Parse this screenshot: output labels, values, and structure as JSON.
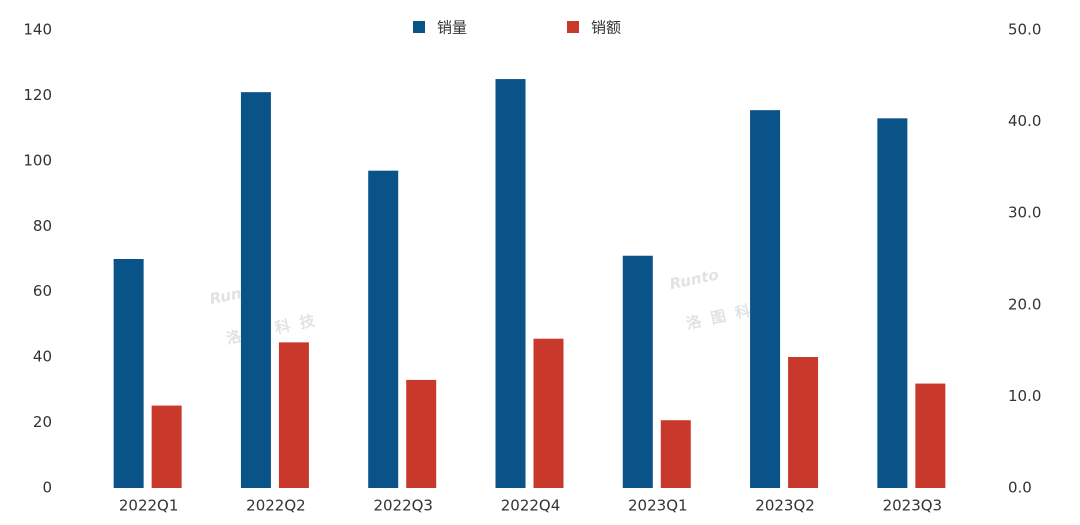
{
  "chart_data": {
    "type": "bar",
    "categories": [
      "2022Q1",
      "2022Q2",
      "2022Q3",
      "2022Q4",
      "2023Q1",
      "2023Q2",
      "2023Q3"
    ],
    "series": [
      {
        "name": "销量",
        "color": "#0a5388",
        "values": [
          70,
          121,
          97,
          125,
          71,
          115.5,
          113
        ]
      },
      {
        "name": "销额",
        "color": "#c8392b",
        "axis": "y2",
        "values": [
          9.0,
          15.9,
          11.8,
          16.3,
          7.4,
          14.3,
          11.4
        ]
      }
    ],
    "ylim": [
      0,
      140
    ],
    "yticks": [
      0,
      20,
      40,
      60,
      80,
      100,
      120,
      140
    ],
    "y2lim": [
      0,
      50
    ],
    "y2ticks": [
      {
        "value": 0,
        "label": "0.0"
      },
      {
        "value": 10,
        "label": "10.0"
      },
      {
        "value": 20,
        "label": "20.0"
      },
      {
        "value": 30,
        "label": "30.0"
      },
      {
        "value": 40,
        "label": "40.0"
      },
      {
        "value": 50,
        "label": "50.0"
      }
    ],
    "grid": false,
    "legend": "top",
    "watermark": {
      "logo": "Runto",
      "name": "洛图科技"
    }
  }
}
